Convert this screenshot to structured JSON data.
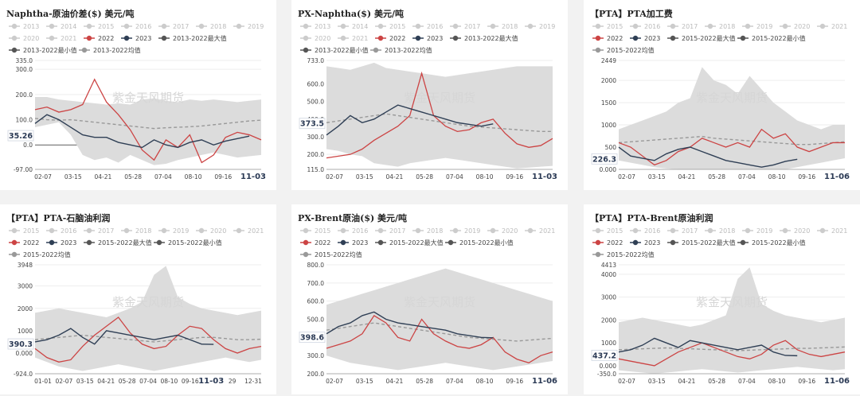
{
  "colors": {
    "y2022": "#cc4444",
    "y2023": "#2f3f55",
    "max": "#555555",
    "min": "#555555",
    "avg": "#999999",
    "band": "#dcdcdc",
    "inactive": "#cccccc"
  },
  "watermark": "紫金天风期货",
  "chart_data": [
    {
      "type": "line",
      "title": "Naphtha-原油价差($) 美元/吨",
      "legend": [
        "2013",
        "2014",
        "2015",
        "2016",
        "2017",
        "2018",
        "2019",
        "2020",
        "2021",
        "2022",
        "2023",
        "2013-2022最大值",
        "2013-2022最小值",
        "2013-2022均值"
      ],
      "legend_active": [
        "2022",
        "2023",
        "2013-2022最大值",
        "2013-2022最小值",
        "2013-2022均值"
      ],
      "x_ticks": [
        "02-07",
        "03-15",
        "04-21",
        "05-28",
        "07-04",
        "08-10",
        "09-16",
        "11-03"
      ],
      "highlight_date": "11-03",
      "current_value": "35.26",
      "y_ticks": [
        "335.0",
        "300.0",
        "200.0",
        "100.0",
        "0.0",
        "-97.00"
      ],
      "ylim": [
        -97,
        335
      ],
      "series": {
        "max": [
          190,
          190,
          180,
          175,
          170,
          165,
          160,
          165,
          160,
          180,
          185,
          175,
          170,
          180,
          175,
          180,
          175,
          170,
          175,
          180
        ],
        "min": [
          70,
          80,
          90,
          40,
          -40,
          -60,
          -50,
          -70,
          -40,
          -60,
          -80,
          -75,
          -60,
          -50,
          -40,
          -30,
          -40,
          -50,
          -45,
          -40
        ],
        "avg": [
          105,
          100,
          98,
          100,
          95,
          90,
          85,
          80,
          75,
          70,
          65,
          68,
          70,
          72,
          75,
          80,
          85,
          90,
          95,
          98
        ],
        "y2022": [
          140,
          150,
          130,
          140,
          160,
          260,
          170,
          120,
          60,
          -20,
          -60,
          20,
          -10,
          40,
          -70,
          -40,
          30,
          50,
          40,
          20
        ],
        "y2023": [
          85,
          120,
          100,
          70,
          40,
          30,
          30,
          10,
          0,
          -10,
          20,
          0,
          -10,
          10,
          20,
          0,
          15,
          25,
          35
        ]
      }
    },
    {
      "type": "line",
      "title": "PX-Naphtha($) 美元/吨",
      "legend": [
        "2013",
        "2014",
        "2015",
        "2016",
        "2017",
        "2018",
        "2019",
        "2020",
        "2021",
        "2022",
        "2023",
        "2013-2022最大值",
        "2013-2022最小值",
        "2013-2022均值"
      ],
      "legend_active": [
        "2022",
        "2023",
        "2013-2022最大值",
        "2013-2022最小值",
        "2013-2022均值"
      ],
      "x_ticks": [
        "02-07",
        "03-15",
        "04-21",
        "05-28",
        "07-04",
        "08-10",
        "09-16",
        "11-03"
      ],
      "highlight_date": "11-03",
      "current_value": "373.5",
      "y_ticks": [
        "733.0",
        "600.0",
        "500.0",
        "400.0",
        "300.0",
        "200.0",
        "115.0"
      ],
      "ylim": [
        115,
        733
      ],
      "series": {
        "max": [
          700,
          690,
          680,
          700,
          720,
          690,
          680,
          670,
          660,
          650,
          640,
          650,
          660,
          670,
          680,
          690,
          700,
          700,
          700,
          700
        ],
        "min": [
          230,
          220,
          200,
          190,
          150,
          140,
          130,
          150,
          160,
          170,
          180,
          170,
          160,
          150,
          140,
          130,
          120,
          125,
          130,
          135
        ],
        "avg": [
          380,
          390,
          400,
          410,
          420,
          430,
          420,
          410,
          400,
          390,
          380,
          370,
          360,
          355,
          350,
          345,
          340,
          335,
          330,
          330
        ],
        "y2022": [
          180,
          190,
          200,
          230,
          280,
          320,
          360,
          420,
          660,
          420,
          360,
          330,
          340,
          380,
          400,
          320,
          260,
          240,
          250,
          290
        ],
        "y2023": [
          310,
          360,
          420,
          380,
          400,
          440,
          480,
          460,
          440,
          420,
          400,
          380,
          370,
          360,
          373
        ]
      }
    },
    {
      "type": "line",
      "title": "【PTA】PTA加工费",
      "legend": [
        "2015",
        "2016",
        "2017",
        "2018",
        "2019",
        "2020",
        "2021",
        "2022",
        "2023",
        "2015-2022最大值",
        "2015-2022最小值",
        "2015-2022均值"
      ],
      "legend_active": [
        "2022",
        "2023",
        "2015-2022最大值",
        "2015-2022最小值",
        "2015-2022均值"
      ],
      "x_ticks": [
        "02-07",
        "03-15",
        "04-21",
        "05-28",
        "07-04",
        "08-10",
        "09-16",
        "11-06"
      ],
      "highlight_date": "11-06",
      "current_value": "226.3",
      "y_ticks": [
        "2449",
        "2000",
        "1500",
        "1000",
        "500",
        "0.000"
      ],
      "ylim": [
        0,
        2449
      ],
      "series": {
        "max": [
          900,
          1000,
          1100,
          1200,
          1300,
          1500,
          1600,
          2300,
          2000,
          1900,
          1700,
          2100,
          1800,
          1500,
          1300,
          1100,
          1000,
          900,
          1000,
          1000
        ],
        "min": [
          200,
          150,
          100,
          50,
          20,
          0,
          0,
          0,
          0,
          0,
          0,
          0,
          0,
          0,
          0,
          50,
          100,
          150,
          200,
          250
        ],
        "avg": [
          600,
          620,
          640,
          660,
          680,
          700,
          720,
          740,
          700,
          680,
          660,
          640,
          620,
          600,
          580,
          560,
          560,
          580,
          600,
          620
        ],
        "y2022": [
          600,
          500,
          300,
          100,
          200,
          400,
          500,
          700,
          600,
          500,
          600,
          500,
          900,
          700,
          800,
          500,
          400,
          500,
          600,
          600
        ],
        "y2023": [
          500,
          300,
          250,
          200,
          350,
          450,
          500,
          400,
          300,
          200,
          150,
          100,
          50,
          100,
          180,
          226
        ]
      }
    },
    {
      "type": "line",
      "title": "【PTA】PTA-石脑油利润",
      "legend": [
        "2015",
        "2016",
        "2017",
        "2018",
        "2019",
        "2020",
        "2021",
        "2022",
        "2023",
        "2015-2022最大值",
        "2015-2022最小值",
        "2015-2022均值"
      ],
      "legend_active": [
        "2022",
        "2023",
        "2015-2022最大值",
        "2015-2022最小值",
        "2015-2022均值"
      ],
      "x_ticks": [
        "01-01",
        "02-07",
        "03-15",
        "04-21",
        "05-28",
        "07-04",
        "08-10",
        "09-16",
        "11-03",
        "29",
        "12-31"
      ],
      "highlight_date": "11-03",
      "current_value": "390.3",
      "y_ticks": [
        "3948",
        "3000",
        "2000",
        "1000",
        "0.000",
        "-924.0"
      ],
      "ylim": [
        -924,
        3948
      ],
      "series": {
        "max": [
          1800,
          1900,
          2000,
          1900,
          1800,
          1700,
          1600,
          1800,
          2000,
          2300,
          3500,
          3900,
          2500,
          2200,
          2000,
          1900,
          1800,
          1700,
          1800,
          1900
        ],
        "min": [
          -200,
          -400,
          -600,
          -700,
          -800,
          -700,
          -600,
          -500,
          -600,
          -700,
          -800,
          -700,
          -600,
          -500,
          -400,
          -300,
          -200,
          -300,
          -400,
          -300
        ],
        "avg": [
          600,
          650,
          700,
          750,
          800,
          750,
          700,
          650,
          600,
          550,
          500,
          550,
          600,
          650,
          700,
          700,
          650,
          600,
          600,
          620
        ],
        "y2022": [
          200,
          -200,
          -400,
          -300,
          300,
          800,
          1200,
          1600,
          900,
          400,
          200,
          300,
          800,
          1200,
          1100,
          600,
          200,
          0,
          200,
          300
        ],
        "y2023": [
          500,
          600,
          800,
          1100,
          700,
          400,
          1000,
          900,
          800,
          700,
          600,
          700,
          800,
          600,
          400,
          390
        ]
      }
    },
    {
      "type": "line",
      "title": "PX-Brent原油($) 美元/吨",
      "legend": [
        "2015",
        "2016",
        "2017",
        "2018",
        "2019",
        "2020",
        "2021",
        "2022",
        "2023",
        "2015-2022最大值",
        "2015-2022最小值",
        "2015-2022均值"
      ],
      "legend_active": [
        "2022",
        "2023",
        "2015-2022最大值",
        "2015-2022最小值",
        "2015-2022均值"
      ],
      "x_ticks": [
        "02-07",
        "03-15",
        "04-21",
        "05-28",
        "07-04",
        "08-10",
        "09-16",
        "11-06"
      ],
      "highlight_date": "11-06",
      "current_value": "398.6",
      "y_ticks": [
        "800.0",
        "700.0",
        "600.0",
        "500.0",
        "400.0",
        "300.0",
        "200.0"
      ],
      "ylim": [
        200,
        800
      ],
      "series": {
        "max": [
          580,
          600,
          620,
          640,
          660,
          680,
          700,
          720,
          740,
          760,
          780,
          760,
          740,
          720,
          700,
          680,
          660,
          640,
          620,
          600
        ],
        "min": [
          300,
          280,
          260,
          250,
          240,
          230,
          220,
          230,
          240,
          250,
          260,
          250,
          240,
          230,
          220,
          230,
          240,
          250,
          260,
          270
        ],
        "avg": [
          440,
          450,
          460,
          470,
          480,
          470,
          460,
          450,
          440,
          430,
          420,
          410,
          400,
          395,
          390,
          385,
          380,
          385,
          390,
          395
        ],
        "y2022": [
          340,
          360,
          380,
          420,
          520,
          480,
          400,
          380,
          500,
          420,
          380,
          350,
          340,
          360,
          400,
          320,
          280,
          260,
          300,
          320
        ],
        "y2023": [
          420,
          460,
          480,
          520,
          540,
          500,
          480,
          470,
          460,
          450,
          440,
          420,
          410,
          400,
          398
        ]
      }
    },
    {
      "type": "line",
      "title": "【PTA】PTA-Brent原油利润",
      "legend": [
        "2015",
        "2016",
        "2017",
        "2018",
        "2019",
        "2020",
        "2021",
        "2022",
        "2023",
        "2015-2022最大值",
        "2015-2022最小值",
        "2015-2022均值"
      ],
      "legend_active": [
        "2022",
        "2023",
        "2015-2022最大值",
        "2015-2022最小值",
        "2015-2022均值"
      ],
      "x_ticks": [
        "02-07",
        "03-15",
        "04-21",
        "05-28",
        "07-04",
        "08-10",
        "09-16",
        "11-06"
      ],
      "highlight_date": "11-06",
      "current_value": "437.2",
      "y_ticks": [
        "4413",
        "4000",
        "3000",
        "2000",
        "1000",
        "0.000",
        "-350.0"
      ],
      "ylim": [
        -350,
        4413
      ],
      "series": {
        "max": [
          1900,
          2000,
          2100,
          2000,
          1900,
          1800,
          1700,
          1800,
          2000,
          2200,
          3800,
          4300,
          2700,
          2400,
          2200,
          2100,
          2000,
          1900,
          2000,
          2100
        ],
        "min": [
          -200,
          -250,
          -300,
          -350,
          -300,
          -250,
          -200,
          -150,
          -200,
          -250,
          -300,
          -250,
          -200,
          -150,
          -100,
          -50,
          -100,
          -150,
          -200,
          -150
        ],
        "avg": [
          700,
          720,
          740,
          760,
          780,
          760,
          740,
          720,
          700,
          680,
          660,
          680,
          700,
          720,
          740,
          760,
          760,
          780,
          800,
          820
        ],
        "y2022": [
          300,
          200,
          100,
          0,
          300,
          600,
          800,
          1000,
          800,
          600,
          400,
          300,
          500,
          900,
          1100,
          700,
          500,
          400,
          500,
          600
        ],
        "y2023": [
          600,
          700,
          900,
          1200,
          1000,
          800,
          1100,
          1000,
          900,
          800,
          700,
          800,
          900,
          600,
          450,
          437
        ]
      }
    }
  ]
}
